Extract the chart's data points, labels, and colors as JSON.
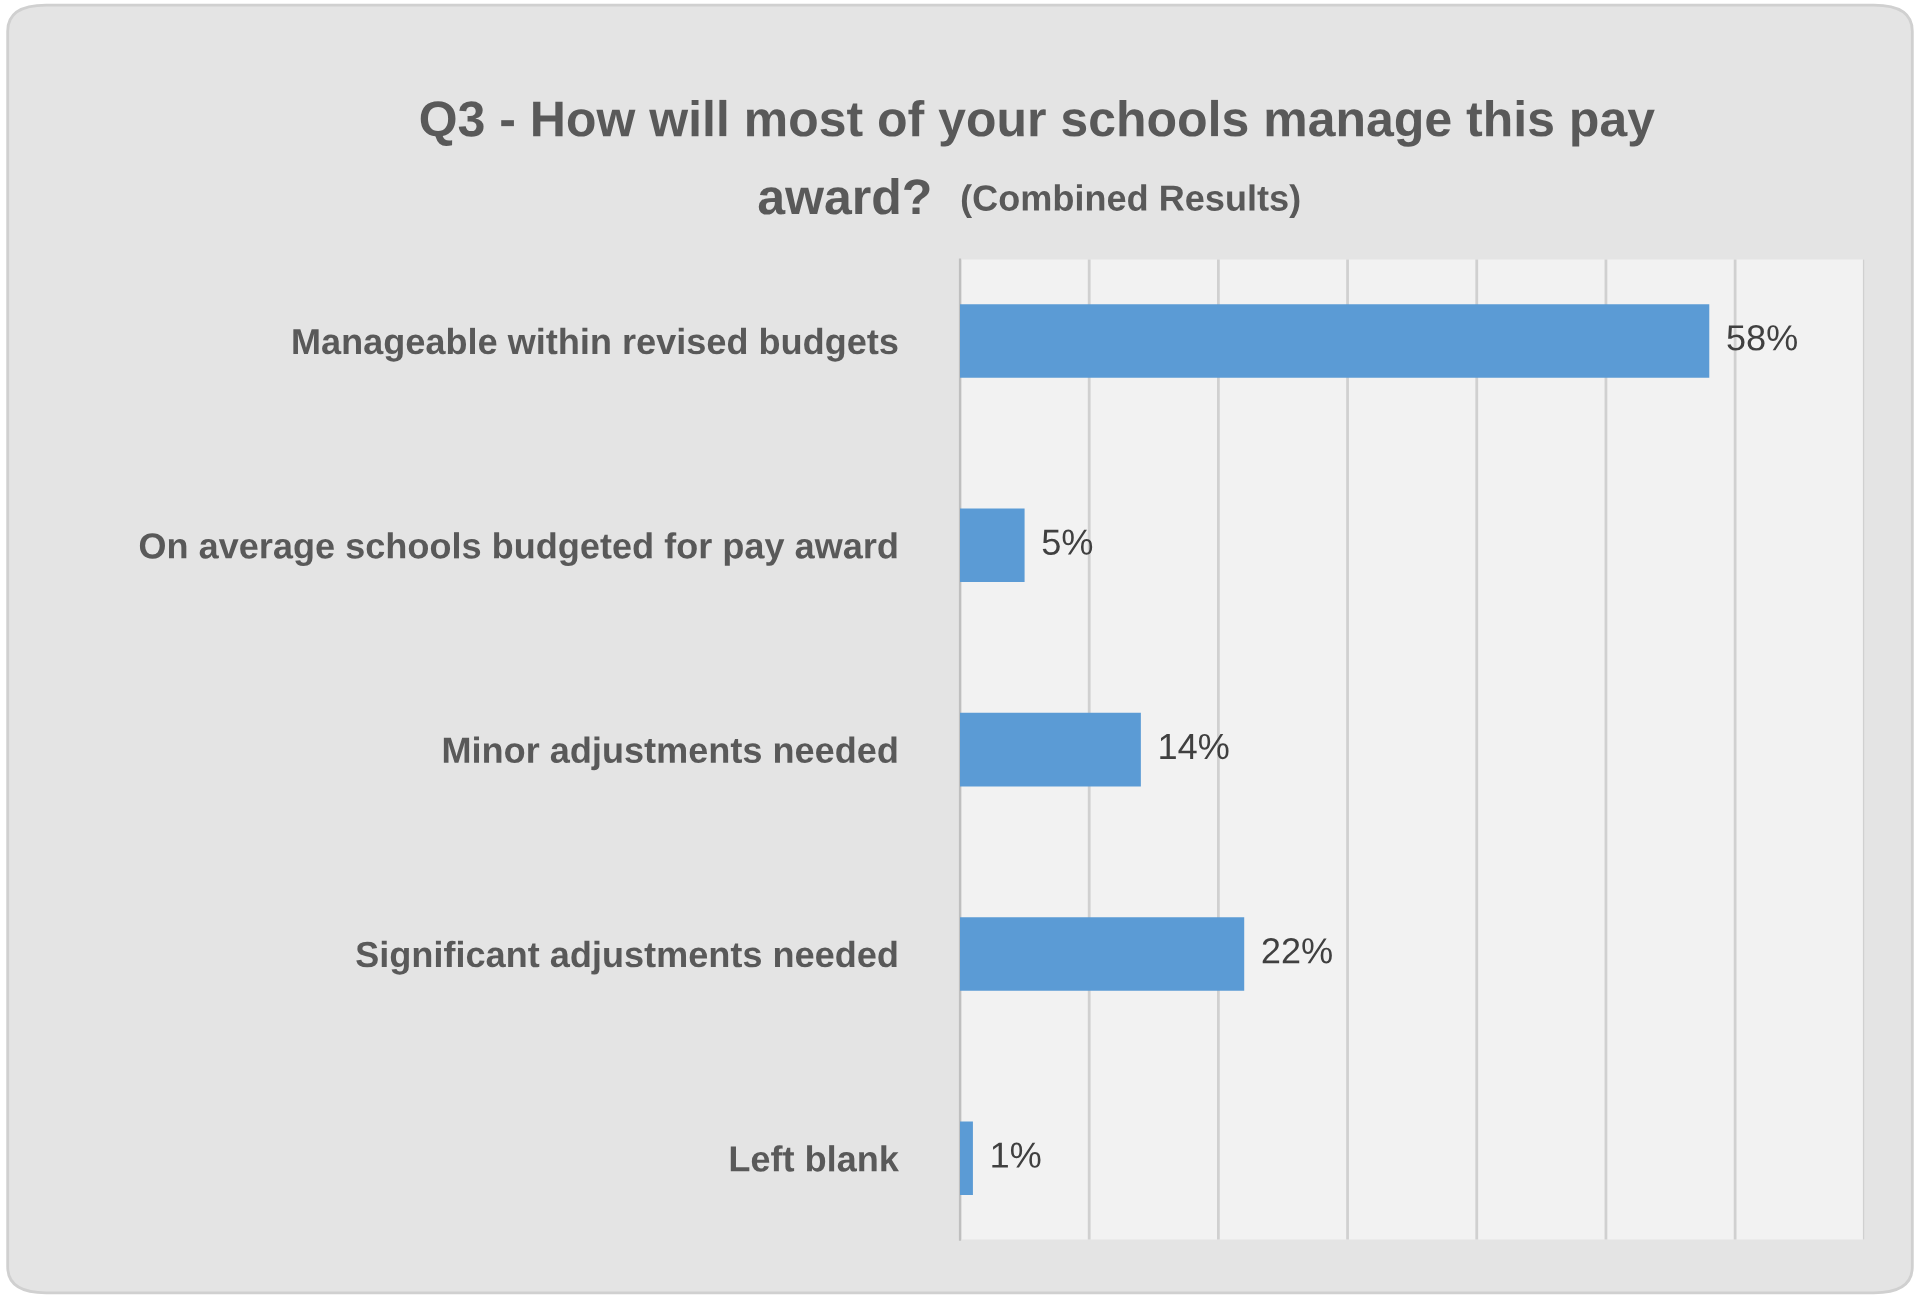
{
  "chart_data": {
    "type": "bar",
    "orientation": "horizontal",
    "title": "Q3 - How will most of your schools manage this pay award?",
    "subtitle": "(Combined Results)",
    "categories": [
      "Manageable within revised budgets",
      "On average schools budgeted for pay award",
      "Minor adjustments needed",
      "Significant adjustments needed",
      "Left blank"
    ],
    "values": [
      58,
      5,
      14,
      22,
      1
    ],
    "color": "#5b9bd5",
    "data_labels": true,
    "value_labels": [
      "58%",
      "5%",
      "14%",
      "22%",
      "1%"
    ],
    "xlim": [
      0,
      70
    ],
    "xticks": [
      {
        "value": 0,
        "label": null
      },
      {
        "value": 10,
        "label": null
      },
      {
        "value": 20,
        "label": null
      },
      {
        "value": 30,
        "label": null
      },
      {
        "value": 40,
        "label": null
      },
      {
        "value": 50,
        "label": null
      },
      {
        "value": 60,
        "label": null
      },
      {
        "value": 70,
        "label": null
      }
    ],
    "grid": "x",
    "tick_labels": "y",
    "legend": false
  }
}
